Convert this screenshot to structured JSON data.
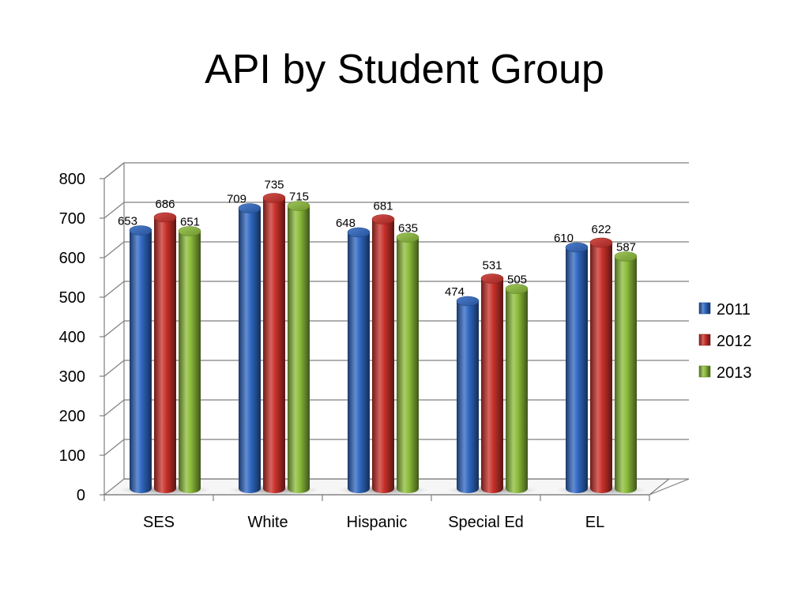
{
  "slide": {
    "title": "API by Student Group"
  },
  "chart_data": {
    "type": "bar",
    "style": "3d-cylinder",
    "title": "API by Student Group",
    "xlabel": "",
    "ylabel": "",
    "categories": [
      "SES",
      "White",
      "Hispanic",
      "Special Ed",
      "EL"
    ],
    "series": [
      {
        "name": "2011",
        "color": "#2f67c1",
        "values": [
          653,
          709,
          648,
          474,
          610
        ]
      },
      {
        "name": "2012",
        "color": "#c9302a",
        "values": [
          686,
          735,
          681,
          531,
          622
        ]
      },
      {
        "name": "2013",
        "color": "#8cbc3a",
        "values": [
          651,
          715,
          635,
          505,
          587
        ]
      }
    ],
    "ylim": [
      0,
      800
    ],
    "yticks": [
      0,
      100,
      200,
      300,
      400,
      500,
      600,
      700,
      800
    ],
    "grid": true,
    "data_labels": true,
    "legend_position": "right"
  }
}
